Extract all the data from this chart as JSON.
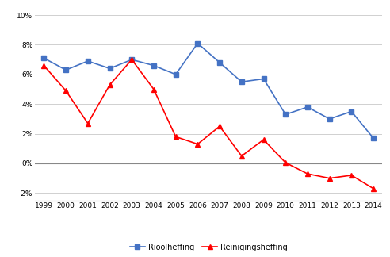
{
  "years": [
    1999,
    2000,
    2001,
    2002,
    2003,
    2004,
    2005,
    2006,
    2007,
    2008,
    2009,
    2010,
    2011,
    2012,
    2013,
    2014
  ],
  "rioolheffing": [
    7.1,
    6.3,
    6.9,
    6.4,
    7.0,
    6.6,
    6.0,
    8.1,
    6.8,
    5.5,
    5.7,
    3.3,
    3.8,
    3.0,
    3.5,
    1.7
  ],
  "reinigingsheffing": [
    6.6,
    4.9,
    2.7,
    5.3,
    7.0,
    5.0,
    1.8,
    1.3,
    2.5,
    0.5,
    1.6,
    0.05,
    -0.7,
    -1.0,
    -0.8,
    -1.7
  ],
  "riool_color": "#4472C4",
  "reiniging_color": "#FF0000",
  "riool_label": "Rioolheffing",
  "reiniging_label": "Reinigingsheffing",
  "ylim": [
    -2.5,
    10.5
  ],
  "yticks": [
    -2,
    0,
    2,
    4,
    6,
    8,
    10
  ],
  "ytick_labels": [
    "-2%",
    "0%",
    "2%",
    "4%",
    "6%",
    "8%",
    "10%"
  ],
  "grid_color": "#D0D0D0",
  "background_color": "#FFFFFF",
  "marker_size": 4,
  "line_width": 1.2,
  "tick_fontsize": 6.5,
  "legend_fontsize": 7
}
